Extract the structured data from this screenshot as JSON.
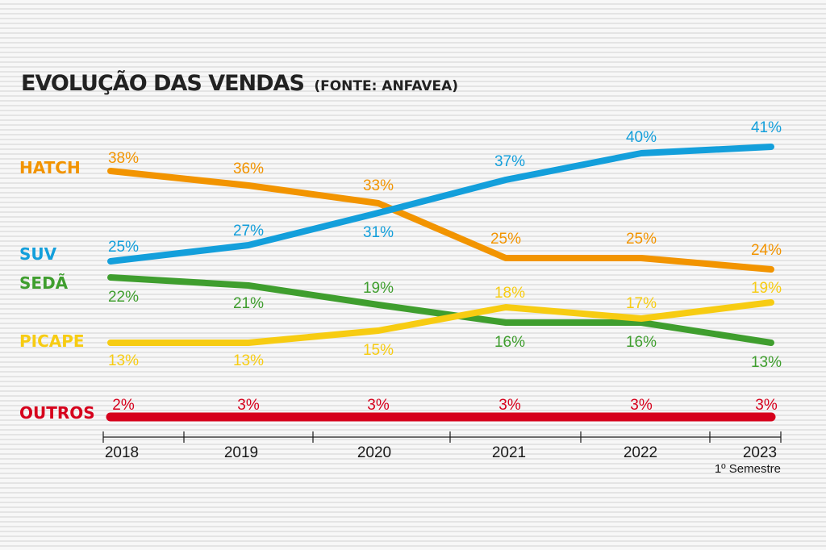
{
  "chart_data": {
    "type": "line",
    "title": "EVOLUÇÃO DAS VENDAS",
    "source": "(FONTE: ANFAVEA)",
    "x": [
      "2018",
      "2019",
      "2020",
      "2021",
      "2022",
      "2023"
    ],
    "x_note": "1º Semestre",
    "ylabel": "",
    "unit": "%",
    "series": [
      {
        "name": "HATCH",
        "color": "#f29400",
        "values": [
          38,
          36,
          33,
          25,
          25,
          24
        ]
      },
      {
        "name": "SUV",
        "color": "#139fdb",
        "values": [
          25,
          27,
          31,
          37,
          40,
          41
        ]
      },
      {
        "name": "SEDÃ",
        "color": "#3f9e2e",
        "values": [
          22,
          21,
          19,
          16,
          16,
          13
        ]
      },
      {
        "name": "PICAPE",
        "color": "#f7cc12",
        "values": [
          13,
          13,
          15,
          18,
          17,
          19
        ]
      },
      {
        "name": "OUTROS",
        "color": "#d6001c",
        "values": [
          2,
          3,
          3,
          3,
          3,
          3
        ]
      }
    ]
  }
}
